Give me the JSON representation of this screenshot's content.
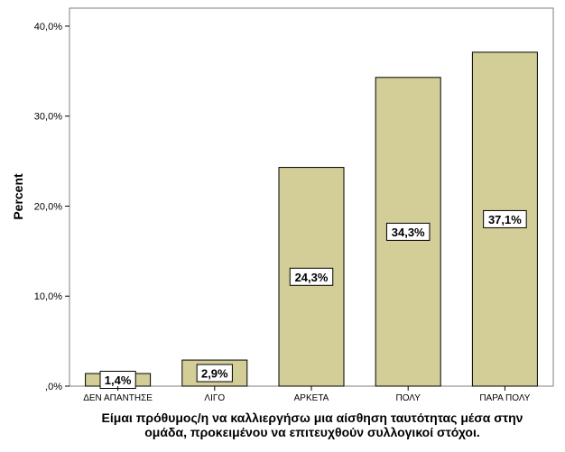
{
  "chart_data": {
    "type": "bar",
    "categories": [
      "ΔΕΝ ΑΠΑΝΤΗΣΕ",
      "ΛΙΓΟ",
      "ΑΡΚΕΤΑ",
      "ΠΟΛΥ",
      "ΠΑΡΑ ΠΟΛΥ"
    ],
    "values": [
      1.4,
      2.9,
      24.3,
      34.3,
      37.1
    ],
    "data_labels": [
      "1,4%",
      "2,9%",
      "24,3%",
      "34,3%",
      "37,1%"
    ],
    "ylabel": "Percent",
    "xlabel_lines": [
      "Είμαι πρόθυμος/η να καλλιεργήσω μια αίσθηση ταυτότητας μέσα στην",
      "ομάδα, προκειμένου να επιτευχθούν συλλογικοί στόχοι."
    ],
    "yticks": [
      0,
      10,
      20,
      30,
      40
    ],
    "ytick_labels": [
      ",0%",
      "10,0%",
      "20,0%",
      "30,0%",
      "40,0%"
    ],
    "ylim": [
      0,
      42
    ],
    "grid": false,
    "legend": "none",
    "bar_color": "#d3cd97",
    "bar_edge_color": "#000000"
  }
}
